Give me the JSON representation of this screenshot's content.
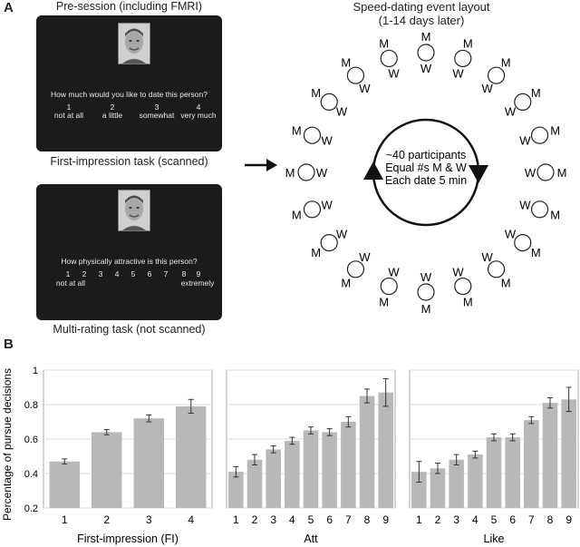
{
  "panel_a": {
    "letter": "A",
    "pre_session_title": "Pre-session (including FMRI)",
    "task1": {
      "question": "How much would you like to date this person?",
      "scale": [
        {
          "num": "1",
          "label": "not at all"
        },
        {
          "num": "2",
          "label": "a little"
        },
        {
          "num": "3",
          "label": "somewhat"
        },
        {
          "num": "4",
          "label": "very much"
        }
      ],
      "caption": "First-impression task (scanned)"
    },
    "task2": {
      "question": "How physically attractive is this person?",
      "numbers": [
        "1",
        "2",
        "3",
        "4",
        "5",
        "6",
        "7",
        "8",
        "9"
      ],
      "low_label": "not at all",
      "high_label": "extremely",
      "caption": "Multi-rating task (not scanned)"
    },
    "event": {
      "title_line1": "Speed-dating event layout",
      "title_line2": "(1-14 days later)",
      "center_line1": "~40 participants",
      "center_line2": "Equal #s M & W",
      "center_line3": "Each date 5 min",
      "m_label": "M",
      "w_label": "W"
    }
  },
  "panel_b": {
    "letter": "B",
    "y_axis_label": "Percentage of pursue decisions"
  },
  "chart_data": [
    {
      "type": "bar",
      "xlabel": "First-impression (FI)",
      "ylabel": "Percentage of pursue decisions",
      "categories": [
        "1",
        "2",
        "3",
        "4"
      ],
      "values": [
        0.47,
        0.64,
        0.72,
        0.79
      ],
      "errors": [
        0.015,
        0.015,
        0.02,
        0.04
      ],
      "ylim": [
        0.2,
        1
      ],
      "yticks": [
        0.2,
        0.4,
        0.6,
        0.8,
        1
      ],
      "ytick_labels": [
        "0.2",
        "0.4",
        "0.6",
        "0.8",
        "1"
      ],
      "grid": true,
      "bar_color": "#b8b8b8"
    },
    {
      "type": "bar",
      "xlabel": "Att",
      "categories": [
        "1",
        "2",
        "3",
        "4",
        "5",
        "6",
        "7",
        "8",
        "9"
      ],
      "values": [
        0.41,
        0.48,
        0.54,
        0.59,
        0.65,
        0.64,
        0.7,
        0.85,
        0.87
      ],
      "errors": [
        0.03,
        0.03,
        0.02,
        0.02,
        0.02,
        0.02,
        0.03,
        0.04,
        0.08
      ],
      "ylim": [
        0.2,
        1
      ],
      "grid": true,
      "bar_color": "#b8b8b8"
    },
    {
      "type": "bar",
      "xlabel": "Like",
      "categories": [
        "1",
        "2",
        "3",
        "4",
        "5",
        "6",
        "7",
        "8",
        "9"
      ],
      "values": [
        0.41,
        0.43,
        0.48,
        0.51,
        0.61,
        0.61,
        0.71,
        0.81,
        0.83
      ],
      "errors": [
        0.06,
        0.03,
        0.03,
        0.02,
        0.02,
        0.02,
        0.02,
        0.03,
        0.07
      ],
      "ylim": [
        0.2,
        1
      ],
      "grid": true,
      "bar_color": "#b8b8b8"
    }
  ]
}
